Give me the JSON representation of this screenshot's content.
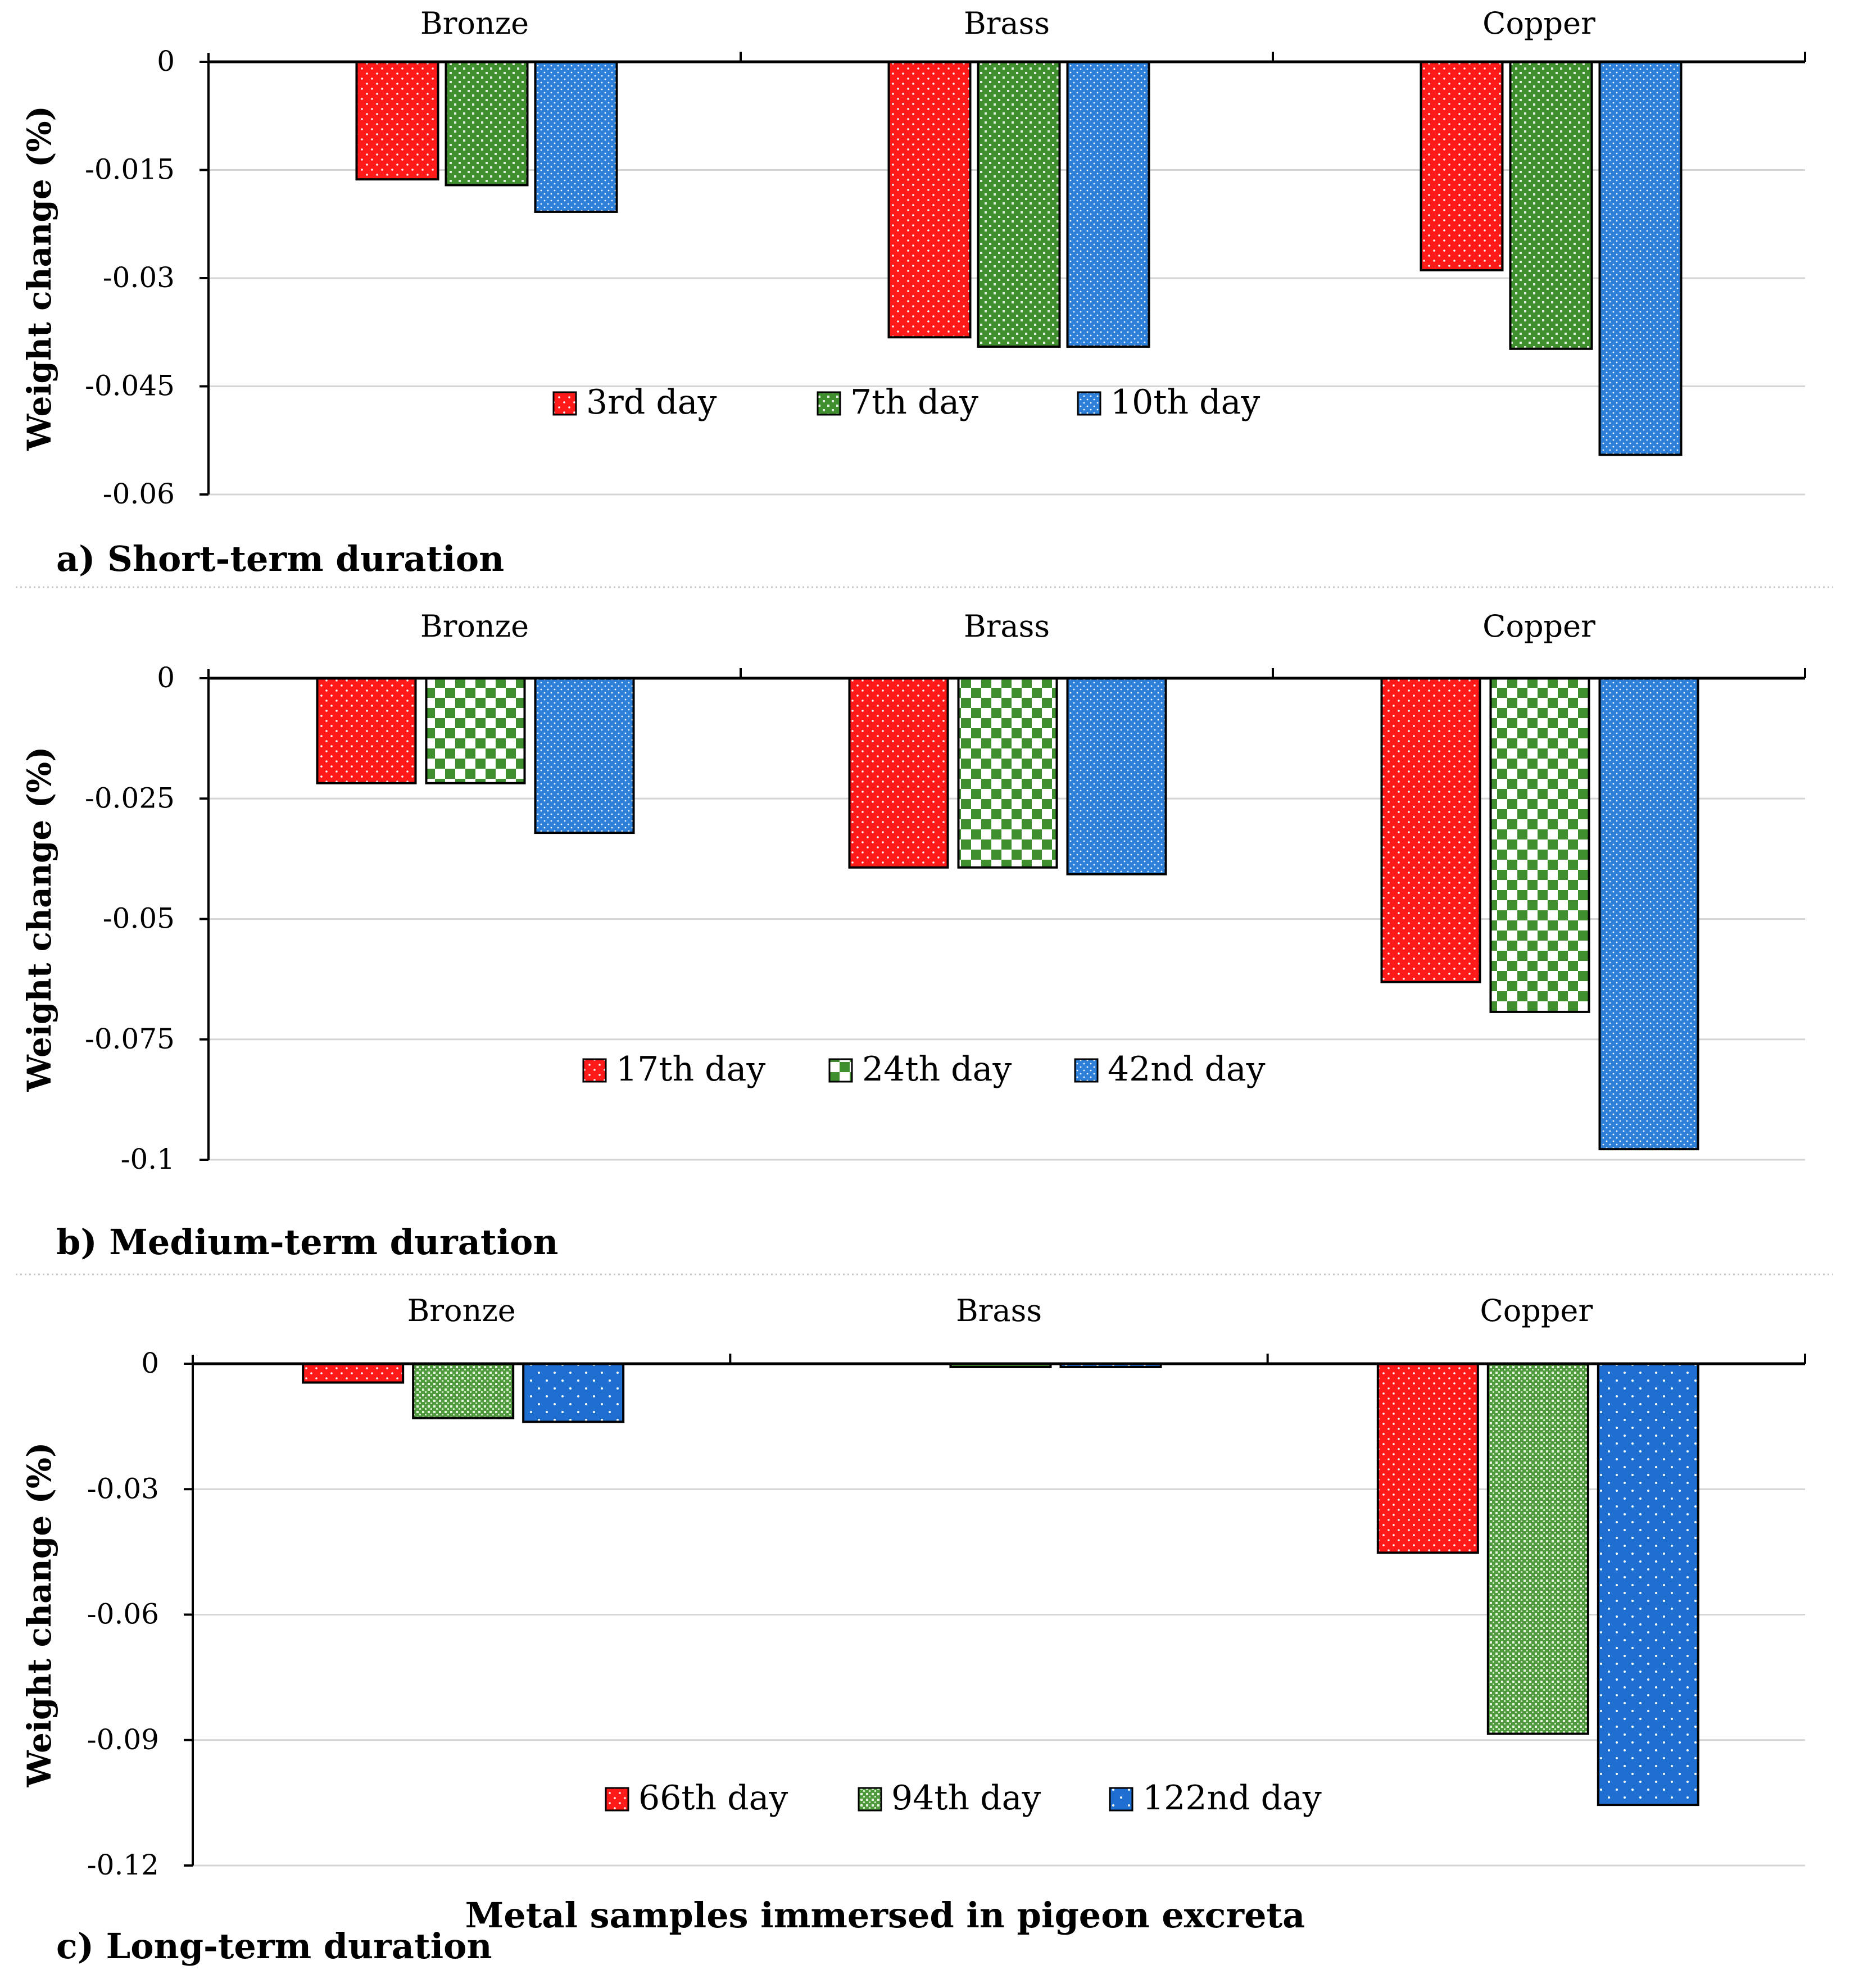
{
  "colors": {
    "red": "#ff1a1a",
    "green": "#3f8f2f",
    "blue": "#2d7fd8",
    "grid": "#d4d4d4",
    "axis": "#000000"
  },
  "xlabel": "Metal samples immersed in pigeon excreta",
  "chart_data": [
    {
      "type": "bar",
      "caption": "a) Short-term duration",
      "ylabel": "Weight change (%)",
      "categories": [
        "Bronze",
        "Brass",
        "Copper"
      ],
      "ylim": [
        -0.06,
        0
      ],
      "yticks": [
        0,
        -0.015,
        -0.03,
        -0.045,
        -0.06
      ],
      "ytick_labels": [
        "0",
        "-0.015",
        "-0.03",
        "-0.045",
        "-0.06"
      ],
      "series": [
        {
          "name": "3rd day",
          "color": "red",
          "pattern": "dots",
          "values": [
            -0.0163,
            -0.0382,
            -0.0289
          ]
        },
        {
          "name": "7th day",
          "color": "green",
          "pattern": "checker-fine",
          "values": [
            -0.0171,
            -0.0395,
            -0.0398
          ]
        },
        {
          "name": "10th day",
          "color": "blue",
          "pattern": "dots-dense",
          "values": [
            -0.0208,
            -0.0395,
            -0.0545
          ]
        }
      ]
    },
    {
      "type": "bar",
      "caption": "b) Medium-term duration",
      "ylabel": "Weight change (%)",
      "categories": [
        "Bronze",
        "Brass",
        "Copper"
      ],
      "ylim": [
        -0.1,
        0
      ],
      "yticks": [
        0,
        -0.025,
        -0.05,
        -0.075,
        -0.1
      ],
      "ytick_labels": [
        "0",
        "-0.025",
        "-0.05",
        "-0.075",
        "-0.1"
      ],
      "series": [
        {
          "name": "17th day",
          "color": "red",
          "pattern": "dots",
          "values": [
            -0.0218,
            -0.0393,
            -0.0631
          ]
        },
        {
          "name": "24th day",
          "color": "green",
          "pattern": "checker-large",
          "values": [
            -0.0218,
            -0.0393,
            -0.0693
          ]
        },
        {
          "name": "42nd day",
          "color": "blue",
          "pattern": "dots-dense",
          "values": [
            -0.0321,
            -0.0407,
            -0.0978
          ]
        }
      ]
    },
    {
      "type": "bar",
      "caption": "c) Long-term duration",
      "ylabel": "Weight change (%)",
      "categories": [
        "Bronze",
        "Brass",
        "Copper"
      ],
      "ylim": [
        -0.12,
        0
      ],
      "yticks": [
        0,
        -0.03,
        -0.06,
        -0.09,
        -0.12
      ],
      "ytick_labels": [
        "0",
        "-0.03",
        "-0.06",
        "-0.09",
        "-0.12"
      ],
      "series": [
        {
          "name": "66th day",
          "color": "red",
          "pattern": "dots",
          "values": [
            -0.0045,
            0,
            -0.0452
          ]
        },
        {
          "name": "94th day",
          "color": "green",
          "pattern": "grid",
          "values": [
            -0.013,
            -0.0008,
            -0.0885
          ]
        },
        {
          "name": "122nd day",
          "color": "blue",
          "pattern": "dots-sparse",
          "values": [
            -0.0139,
            -0.0008,
            -0.1055
          ]
        }
      ]
    }
  ]
}
